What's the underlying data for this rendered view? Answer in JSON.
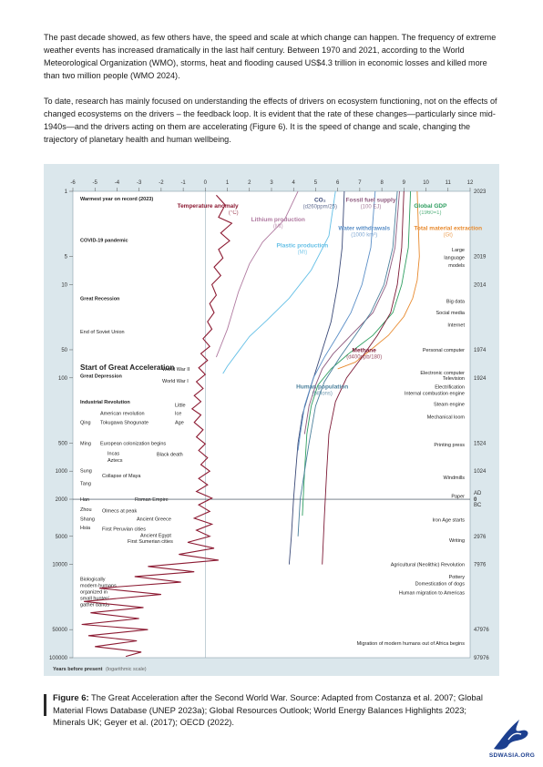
{
  "paragraphs": {
    "p1": "The past decade showed, as few others have, the speed and scale at which change can happen. The frequency of extreme weather events has increased dramatically in the last half century. Between 1970 and 2021, according to the World Meteorological Organization (WMO), storms, heat and flooding caused US$4.3 trillion in economic losses and killed more than two million people (WMO 2024).",
    "p2": "To date, research has mainly focused on understanding the effects of drivers on ecosystem functioning, not on the effects of changed ecosystems on the drivers – the feedback loop. It is evident that the rate of these changes—particularly since mid-1940s—and the drivers acting on them are accelerating (Figure 6). It is the speed of change and scale, changing the trajectory of planetary health and human wellbeing."
  },
  "caption": {
    "label": "Figure 6:",
    "text": " The Great Acceleration after the Second World War. Source: Adapted from Costanza et al. 2007; Global Material Flows Database (UNEP 2023a); Global Resources Outlook; World Energy Balances Highlights 2023; Minerals UK; Geyer et al. (2017); OECD (2022)."
  },
  "logo": {
    "text": "SDWASIA.ORG",
    "icon": "bird-icon"
  },
  "chart_data": {
    "type": "line",
    "x_axis": {
      "ticks": [
        "-6",
        "-5",
        "-4",
        "-3",
        "-2",
        "-1",
        "0",
        "1",
        "2",
        "3",
        "4",
        "5",
        "6",
        "7",
        "8",
        "9",
        "10",
        "11",
        "12"
      ],
      "range": [
        -6,
        12
      ]
    },
    "y_axis": {
      "scale": "log",
      "label": "Years before present",
      "label_note": "(logarithmic scale)",
      "left_ticks": [
        "1",
        "5",
        "10",
        "50",
        "100",
        "500",
        "1000",
        "2000",
        "5000",
        "10000",
        "50000",
        "100000"
      ],
      "right_ticks": [
        "2023",
        "2019",
        "2014",
        "1974",
        "1924",
        "1524",
        "1024",
        "AD",
        "0",
        "BC",
        "2976",
        "7976",
        "47976",
        "97976"
      ]
    },
    "header_notes": [
      "Warmest year on record (2023)",
      "COVID-19 pandemic"
    ],
    "left_events": [
      {
        "label": "Great Recession",
        "y": 14,
        "bold": true
      },
      {
        "label": "End of Soviet Union",
        "y": 32
      },
      {
        "label": "Start of Great Acceleration",
        "y": 78,
        "big": true
      },
      {
        "label": "Great Depression",
        "y": 95,
        "bold": true
      },
      {
        "label": "Industrial Revolution",
        "y": 180,
        "bold": true
      },
      {
        "label": "American revolution",
        "y": 240
      },
      {
        "label": "Tokugawa Shogunate",
        "y": 300
      },
      {
        "label": "Qing",
        "y": 300
      },
      {
        "label": "Ming",
        "y": 500
      },
      {
        "label": "European colonization begins",
        "y": 500
      },
      {
        "label": "Incas",
        "y": 640
      },
      {
        "label": "Black death",
        "y": 660
      },
      {
        "label": "Aztecs",
        "y": 760
      },
      {
        "label": "Sung",
        "y": 980
      },
      {
        "label": "Collapse of Maya",
        "y": 1120
      },
      {
        "label": "Tang",
        "y": 1350
      },
      {
        "label": "Han",
        "y": 2000
      },
      {
        "label": "Roman Empire",
        "y": 2000
      },
      {
        "label": "Zhou",
        "y": 2550
      },
      {
        "label": "Olmecs at peak",
        "y": 2650
      },
      {
        "label": "Shang",
        "y": 3250
      },
      {
        "label": "Ancient Greece",
        "y": 3250
      },
      {
        "label": "Hsia",
        "y": 4000
      },
      {
        "label": "First Peruvian cities",
        "y": 4150
      },
      {
        "label": "Ancient Egypt",
        "y": 4850
      },
      {
        "label": "First Sumerian cities",
        "y": 5650
      },
      {
        "label": "World War II",
        "y": 80
      },
      {
        "label": "World War I",
        "y": 108
      },
      {
        "label": "Little",
        "y": 195
      },
      {
        "label": "Ice",
        "y": 240
      },
      {
        "label": "Age",
        "y": 300
      }
    ],
    "biological_note": [
      "Biologically",
      "modern humans",
      "organized in",
      "small hunter/",
      "gather bands"
    ],
    "right_events": [
      {
        "label": "Large",
        "y": 4.2
      },
      {
        "label": "language",
        "y": 5.1
      },
      {
        "label": "models",
        "y": 6.2
      },
      {
        "label": "Big data",
        "y": 15
      },
      {
        "label": "Social media",
        "y": 20
      },
      {
        "label": "Internet",
        "y": 27
      },
      {
        "label": "Personal computer",
        "y": 50
      },
      {
        "label": "Electronic computer",
        "y": 88
      },
      {
        "label": "Television",
        "y": 100
      },
      {
        "label": "Electrification",
        "y": 124
      },
      {
        "label": "Internal combustion engine",
        "y": 146
      },
      {
        "label": "Steam engine",
        "y": 190
      },
      {
        "label": "Mechanical loom",
        "y": 260
      },
      {
        "label": "Printing press",
        "y": 520
      },
      {
        "label": "Windmills",
        "y": 1170
      },
      {
        "label": "Paper",
        "y": 1850
      },
      {
        "label": "Iron Age starts",
        "y": 3300
      },
      {
        "label": "Writing",
        "y": 5500
      },
      {
        "label": "Agricultural (Neolithic) Revolution",
        "y": 10000
      },
      {
        "label": "Pottery",
        "y": 13500
      },
      {
        "label": "Domestication of dogs",
        "y": 16000
      },
      {
        "label": "Human migration to Americas",
        "y": 20000
      },
      {
        "label": "Migration of modern humans out of Africa begins",
        "y": 70000
      }
    ],
    "series": [
      {
        "name": "Temperature anomaly",
        "unit": "(°C)",
        "color": "#8c1a32",
        "points": [
          [
            0.5,
            1.1
          ],
          [
            0.9,
            1.4
          ],
          [
            0.6,
            1.9
          ],
          [
            1.2,
            2.2
          ],
          [
            0.7,
            2.8
          ],
          [
            1.1,
            3.4
          ],
          [
            0.6,
            4.2
          ],
          [
            0.8,
            5.2
          ],
          [
            0.4,
            6.5
          ],
          [
            0.7,
            8
          ],
          [
            0.3,
            10
          ],
          [
            0.5,
            13
          ],
          [
            0.2,
            16
          ],
          [
            0.4,
            20
          ],
          [
            0.1,
            25
          ],
          [
            0.3,
            30
          ],
          [
            -0.1,
            38
          ],
          [
            0.2,
            46
          ],
          [
            -0.2,
            55
          ],
          [
            0.1,
            65
          ],
          [
            -0.3,
            78
          ],
          [
            0.0,
            92
          ],
          [
            -0.4,
            110
          ],
          [
            -0.1,
            130
          ],
          [
            -0.5,
            155
          ],
          [
            -0.2,
            180
          ],
          [
            -0.6,
            215
          ],
          [
            -0.2,
            250
          ],
          [
            -0.5,
            300
          ],
          [
            -0.1,
            360
          ],
          [
            -0.4,
            430
          ],
          [
            0.0,
            510
          ],
          [
            -0.3,
            600
          ],
          [
            0.1,
            720
          ],
          [
            -0.2,
            850
          ],
          [
            0.2,
            1000
          ],
          [
            -0.3,
            1200
          ],
          [
            0.1,
            1400
          ],
          [
            -0.4,
            1650
          ],
          [
            0.3,
            1950
          ],
          [
            -0.3,
            2300
          ],
          [
            0.2,
            2700
          ],
          [
            -0.5,
            3200
          ],
          [
            0.3,
            3700
          ],
          [
            -0.4,
            4300
          ],
          [
            0.2,
            5000
          ],
          [
            -0.8,
            5800
          ],
          [
            0.4,
            6700
          ],
          [
            -1.2,
            7800
          ],
          [
            0.6,
            9000
          ],
          [
            -2.6,
            10500
          ],
          [
            -0.5,
            12000
          ],
          [
            -3.2,
            13500
          ],
          [
            -1.1,
            15500
          ],
          [
            -4.8,
            18000
          ],
          [
            -2.0,
            21000
          ],
          [
            -5.5,
            25000
          ],
          [
            -2.8,
            29000
          ],
          [
            -5.2,
            33000
          ],
          [
            -3.0,
            38000
          ],
          [
            -5.6,
            44000
          ],
          [
            -2.6,
            50000
          ],
          [
            -5.3,
            58000
          ],
          [
            -3.1,
            66000
          ],
          [
            -5.0,
            76000
          ],
          [
            -2.9,
            87000
          ],
          [
            -3.6,
            97000
          ]
        ]
      },
      {
        "name": "Lithium production",
        "unit": "(Mt)",
        "color": "#b07aa0",
        "points": [
          [
            4.2,
            1
          ],
          [
            3.6,
            2
          ],
          [
            2.6,
            3.5
          ],
          [
            2.0,
            6
          ],
          [
            1.5,
            12
          ],
          [
            1.0,
            30
          ],
          [
            0.5,
            60
          ]
        ]
      },
      {
        "name": "Plastic production",
        "unit": "(Mt)",
        "color": "#63bfe6",
        "points": [
          [
            5.9,
            1
          ],
          [
            5.6,
            3
          ],
          [
            4.8,
            7
          ],
          [
            3.8,
            14
          ],
          [
            2.8,
            24
          ],
          [
            2.0,
            36
          ],
          [
            1.5,
            52
          ],
          [
            1.0,
            75
          ],
          [
            0.8,
            90
          ]
        ]
      },
      {
        "name": "CO₂",
        "unit": "(d260ppm/25)",
        "color": "#3b4a78",
        "points": [
          [
            6.3,
            1
          ],
          [
            6.2,
            4
          ],
          [
            6.0,
            10
          ],
          [
            5.7,
            25
          ],
          [
            5.2,
            60
          ],
          [
            4.8,
            120
          ],
          [
            4.4,
            250
          ],
          [
            4.2,
            500
          ],
          [
            4.1,
            1000
          ],
          [
            4.0,
            2000
          ],
          [
            3.9,
            5000
          ],
          [
            3.8,
            10000
          ]
        ]
      },
      {
        "name": "Water withdrawals",
        "unit": "(1000 km³)",
        "color": "#5b8fc7",
        "points": [
          [
            7.7,
            1
          ],
          [
            7.5,
            4
          ],
          [
            7.1,
            10
          ],
          [
            6.6,
            20
          ],
          [
            6.0,
            35
          ],
          [
            5.4,
            60
          ],
          [
            4.9,
            100
          ],
          [
            4.5,
            200
          ],
          [
            4.3,
            400
          ],
          [
            4.2,
            600
          ]
        ]
      },
      {
        "name": "Fossil fuel supply",
        "unit": "(100 EJ)",
        "color": "#8e5a7e",
        "points": [
          [
            8.8,
            1
          ],
          [
            8.6,
            4
          ],
          [
            8.2,
            10
          ],
          [
            7.6,
            20
          ],
          [
            6.6,
            35
          ],
          [
            5.8,
            55
          ],
          [
            5.3,
            80
          ],
          [
            5.0,
            120
          ],
          [
            4.7,
            200
          ],
          [
            4.5,
            400
          ]
        ]
      },
      {
        "name": "Global GDP",
        "unit": "(1960=1)",
        "color": "#2e9e60",
        "points": [
          [
            9.3,
            1
          ],
          [
            9.2,
            4
          ],
          [
            8.9,
            10
          ],
          [
            8.5,
            20
          ],
          [
            7.6,
            35
          ],
          [
            6.5,
            55
          ],
          [
            5.7,
            80
          ],
          [
            5.1,
            120
          ],
          [
            4.8,
            200
          ],
          [
            4.6,
            400
          ],
          [
            4.5,
            1000
          ],
          [
            4.4,
            3000
          ]
        ]
      },
      {
        "name": "Total material extraction",
        "unit": "(Gt)",
        "color": "#e88a2e",
        "points": [
          [
            9.6,
            1
          ],
          [
            9.7,
            5
          ],
          [
            9.6,
            9
          ],
          [
            9.4,
            14
          ],
          [
            9.0,
            22
          ],
          [
            8.3,
            35
          ],
          [
            7.5,
            50
          ],
          [
            6.8,
            68
          ],
          [
            6.0,
            80
          ]
        ]
      },
      {
        "name": "Methane",
        "unit": "(d400ppb/180)",
        "color": "#7d1a36",
        "points": [
          [
            9.0,
            1
          ],
          [
            8.9,
            4
          ],
          [
            8.7,
            10
          ],
          [
            8.4,
            20
          ],
          [
            7.8,
            35
          ],
          [
            7.1,
            60
          ],
          [
            6.4,
            100
          ],
          [
            5.9,
            180
          ],
          [
            5.6,
            400
          ],
          [
            5.5,
            1000
          ],
          [
            5.4,
            3000
          ],
          [
            5.3,
            10000
          ]
        ]
      },
      {
        "name": "Human population",
        "unit": "(billions)",
        "color": "#4a7f9b",
        "points": [
          [
            8.7,
            1
          ],
          [
            8.5,
            4
          ],
          [
            8.1,
            10
          ],
          [
            7.5,
            20
          ],
          [
            6.8,
            35
          ],
          [
            6.1,
            60
          ],
          [
            5.4,
            110
          ],
          [
            5.0,
            200
          ],
          [
            4.7,
            500
          ],
          [
            4.5,
            1000
          ],
          [
            4.3,
            2000
          ],
          [
            4.2,
            5000
          ]
        ]
      }
    ]
  }
}
